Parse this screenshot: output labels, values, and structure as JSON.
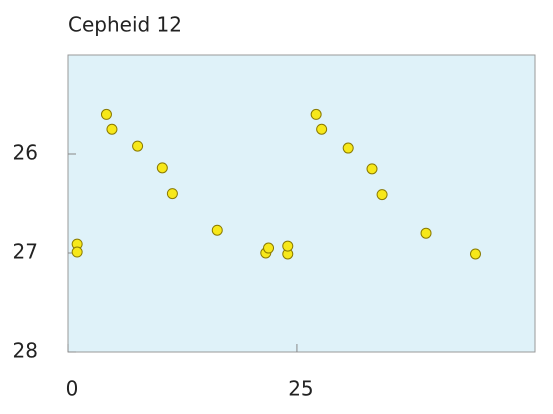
{
  "chart_data": {
    "type": "scatter",
    "title": "Cepheid 12",
    "x": [
      1.0,
      1.0,
      4.2,
      4.8,
      7.6,
      10.3,
      11.4,
      16.3,
      21.6,
      21.9,
      24.0,
      24.0,
      27.1,
      27.7,
      30.6,
      33.2,
      34.3,
      39.1,
      44.5
    ],
    "values": [
      26.91,
      26.99,
      25.6,
      25.75,
      25.92,
      26.14,
      26.4,
      26.77,
      27.0,
      26.95,
      27.01,
      26.93,
      25.6,
      25.75,
      25.94,
      26.15,
      26.41,
      26.8,
      27.01
    ],
    "color": "#f7e81a",
    "xlim": [
      0,
      51
    ],
    "xticks": [
      0,
      25
    ],
    "ylim": [
      28,
      25
    ],
    "yticks": [
      26,
      27,
      28
    ]
  }
}
